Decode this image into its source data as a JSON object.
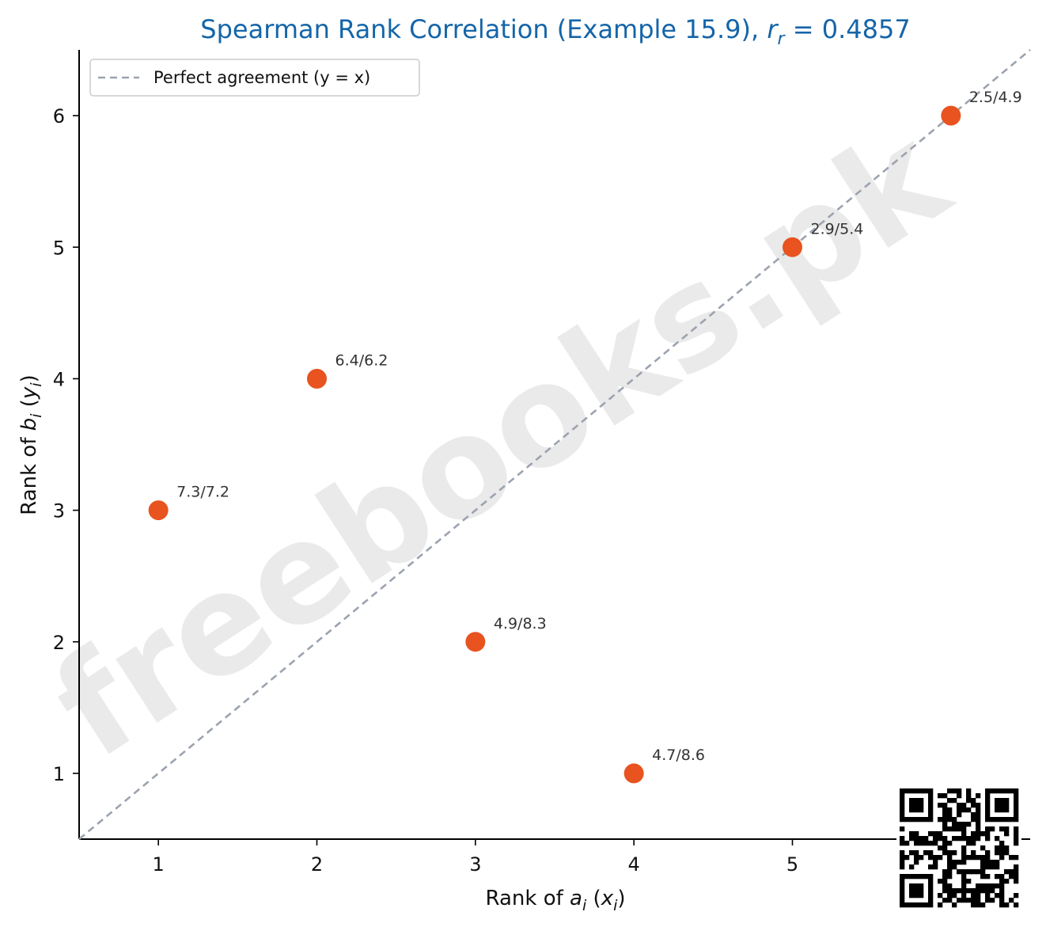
{
  "chart_data": {
    "type": "scatter",
    "title": "Spearman Rank Correlation (Example 15.9), r_r = 0.4857",
    "title_parts": {
      "prefix": "Spearman Rank Correlation (Example 15.9), ",
      "var": "r",
      "sub": "r",
      "suffix": " = 0.4857"
    },
    "xlabel": "Rank of a_i  (x_i)",
    "ylabel": "Rank of b_i  (y_i)",
    "xlim": [
      0.5,
      6.5
    ],
    "ylim": [
      0.5,
      6.5
    ],
    "xticks": [
      1,
      2,
      3,
      4,
      5
    ],
    "yticks": [
      1,
      2,
      3,
      4,
      5,
      6
    ],
    "grid": false,
    "legend_position": "upper-left",
    "series": [
      {
        "name": "Perfect agreement (y = x)",
        "type": "line",
        "style": "dashed",
        "color": "#9ca3af",
        "x": [
          0.5,
          6.5
        ],
        "y": [
          0.5,
          6.5
        ]
      },
      {
        "type": "scatter",
        "color": "#e8531f",
        "points": [
          {
            "x": 1,
            "y": 3,
            "label": "7.3/7.2"
          },
          {
            "x": 2,
            "y": 4,
            "label": "6.4/6.2"
          },
          {
            "x": 3,
            "y": 2,
            "label": "4.9/8.3"
          },
          {
            "x": 4,
            "y": 1,
            "label": "4.7/8.6"
          },
          {
            "x": 5,
            "y": 5,
            "label": "2.9/5.4"
          },
          {
            "x": 6,
            "y": 6,
            "label": "2.5/4.9"
          }
        ]
      }
    ]
  },
  "watermark": "freebooks.pk",
  "qr_icon": "qr-code-icon"
}
